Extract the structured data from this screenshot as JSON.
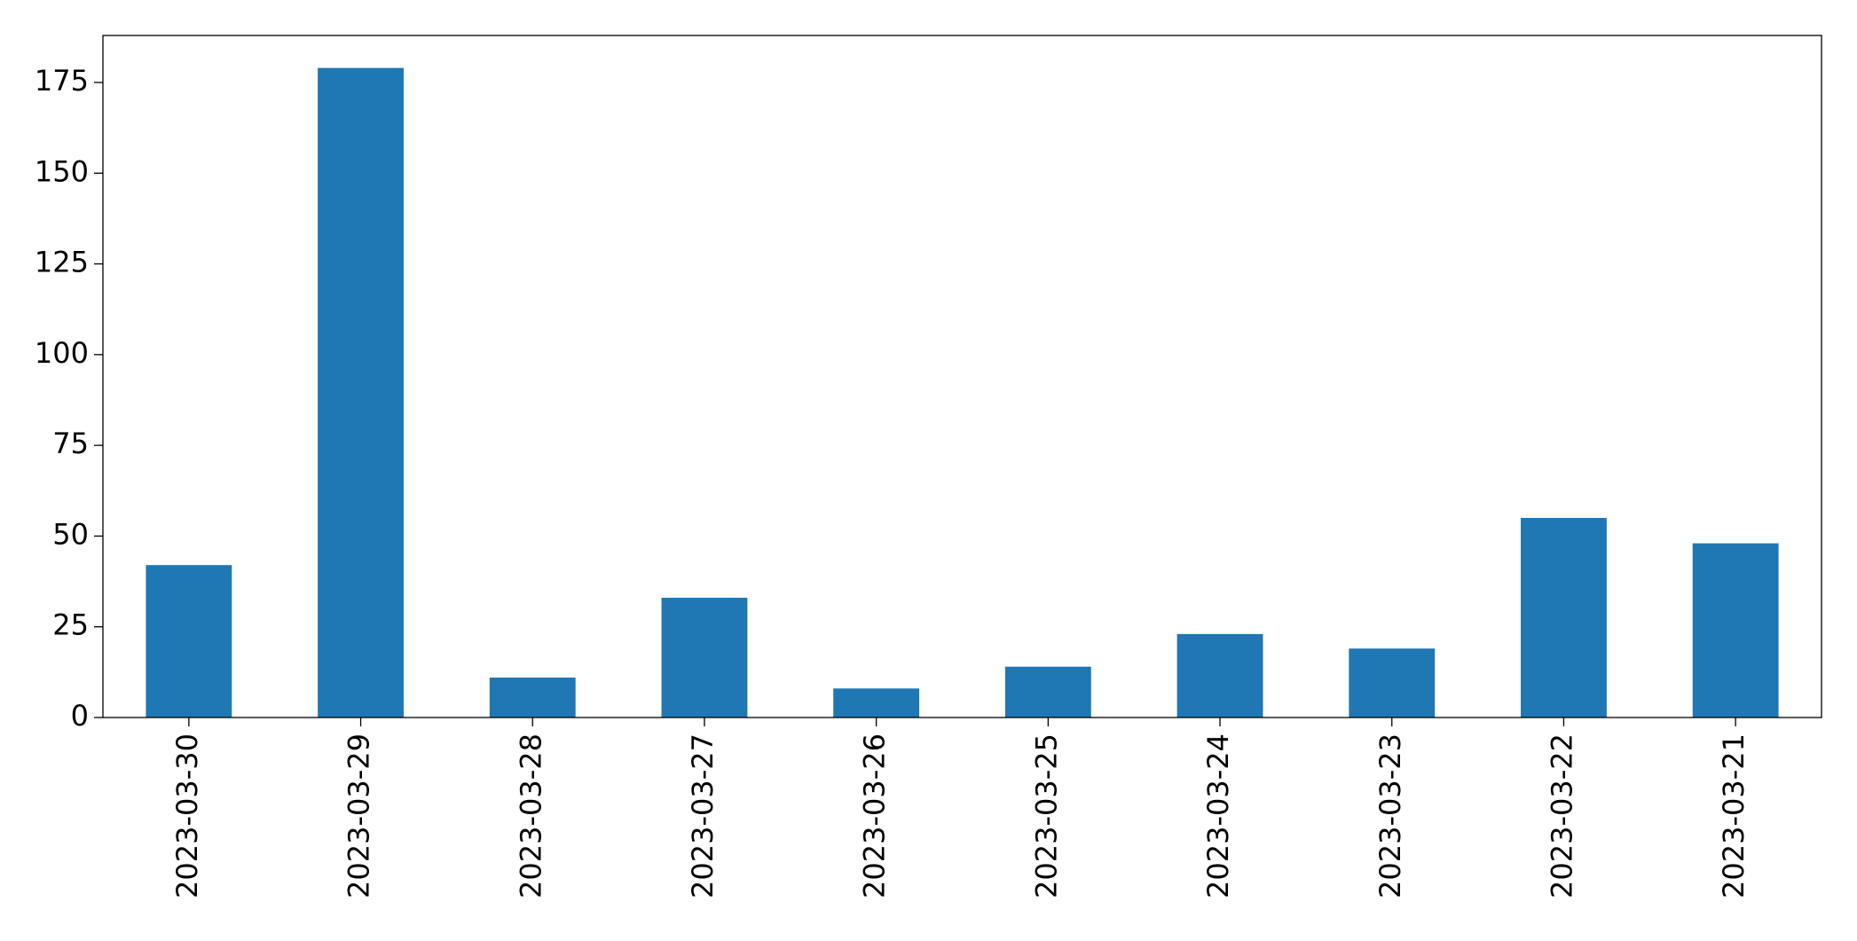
{
  "chart_data": {
    "type": "bar",
    "categories": [
      "2023-03-30",
      "2023-03-29",
      "2023-03-28",
      "2023-03-27",
      "2023-03-26",
      "2023-03-25",
      "2023-03-24",
      "2023-03-23",
      "2023-03-22",
      "2023-03-21"
    ],
    "values": [
      42,
      179,
      11,
      33,
      8,
      14,
      23,
      19,
      55,
      48
    ],
    "color": "#1f77b4",
    "ylim": [
      0,
      187.95
    ],
    "yticks": [
      0,
      25,
      50,
      75,
      100,
      125,
      150,
      175
    ],
    "grid": false
  }
}
